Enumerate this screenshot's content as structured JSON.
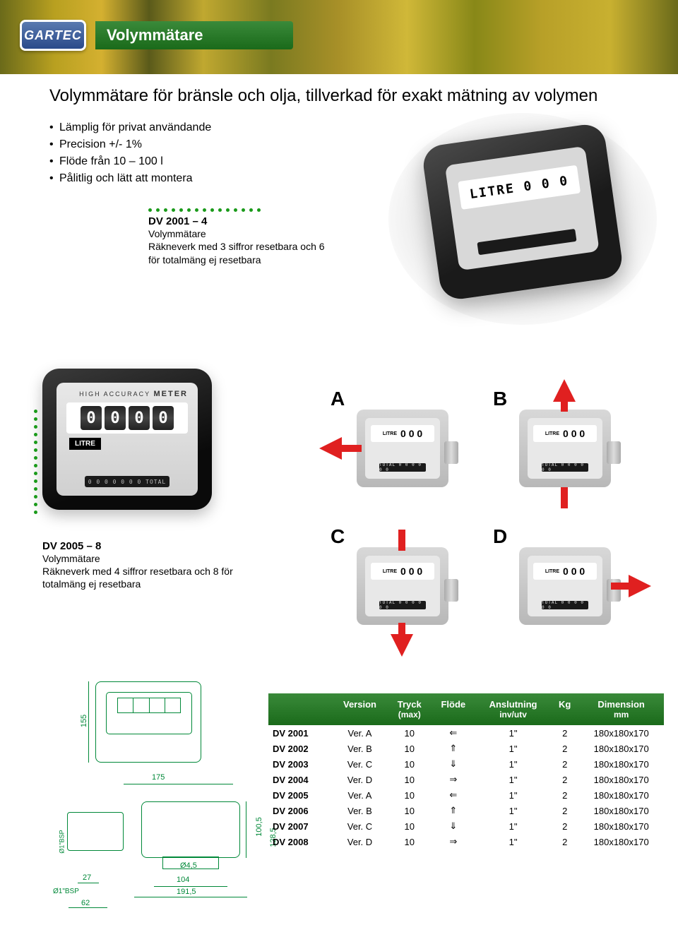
{
  "brand": "GARTEC",
  "page_title": "Volymmätare",
  "intro_heading": "Volymmätare för bränsle och olja, tillverkad för exakt mätning av volymen",
  "bullets": [
    "Lämplig för privat användande",
    "Precision +/- 1%",
    "Flöde från 10 – 100 l",
    "Pålitlig och lätt att montera"
  ],
  "callout1": {
    "title": "DV 2001 – 4",
    "line1": "Volymmätare",
    "line2": "Räkneverk med 3 siffror resetbara och 6 för totalmäng ej resetbara"
  },
  "callout2": {
    "title": "DV 2005 – 8",
    "line1": "Volymmätare",
    "line2": "Räkneverk med 4 siffror resetbara och 8 för totalmäng ej resetbara"
  },
  "mini_display": {
    "label": "LITRE",
    "digits": "0 0 0",
    "total": "TOTAL 0 0 0 0 0 0"
  },
  "small_meter": {
    "brand_small": "HIGH ACCURACY",
    "brand_big": "METER",
    "litre": "LITRE",
    "total": "0 0 0 0 0 0 0  TOTAL"
  },
  "labels_abcd": [
    "A",
    "B",
    "C",
    "D"
  ],
  "arrow_color": "#e02020",
  "green": "#1a9a1a",
  "tech_green": "#008838",
  "dims": {
    "h155": "155",
    "w175": "175",
    "h100_5": "100,5",
    "h128_5": "128,5",
    "d4_5": "Ø4,5",
    "w104": "104",
    "w191_5": "191,5",
    "w27": "27",
    "w62": "62",
    "bsp1": "Ø1\"BSP",
    "bsp2": "Ø1\"BSP"
  },
  "table": {
    "headers": [
      "",
      "Version",
      "Tryck (max)",
      "Flöde",
      "Anslutning inv/utv",
      "Kg",
      "Dimension mm"
    ],
    "header_sub": {
      "2": "(max)",
      "4": "inv/utv",
      "6": "mm"
    },
    "rows": [
      [
        "DV 2001",
        "Ver. A",
        "10",
        "⇐",
        "1\"",
        "2",
        "180x180x170"
      ],
      [
        "DV 2002",
        "Ver. B",
        "10",
        "⇑",
        "1\"",
        "2",
        "180x180x170"
      ],
      [
        "DV 2003",
        "Ver. C",
        "10",
        "⇓",
        "1\"",
        "2",
        "180x180x170"
      ],
      [
        "DV 2004",
        "Ver. D",
        "10",
        "⇒",
        "1\"",
        "2",
        "180x180x170"
      ],
      [
        "DV 2005",
        "Ver. A",
        "10",
        "⇐",
        "1\"",
        "2",
        "180x180x170"
      ],
      [
        "DV 2006",
        "Ver. B",
        "10",
        "⇑",
        "1\"",
        "2",
        "180x180x170"
      ],
      [
        "DV 2007",
        "Ver. C",
        "10",
        "⇓",
        "1\"",
        "2",
        "180x180x170"
      ],
      [
        "DV 2008",
        "Ver. D",
        "10",
        "⇒",
        "1\"",
        "2",
        "180x180x170"
      ]
    ]
  },
  "colors": {
    "header_gradient_from": "#3a8a3a",
    "header_gradient_to": "#1a6a1a",
    "background": "#ffffff"
  }
}
